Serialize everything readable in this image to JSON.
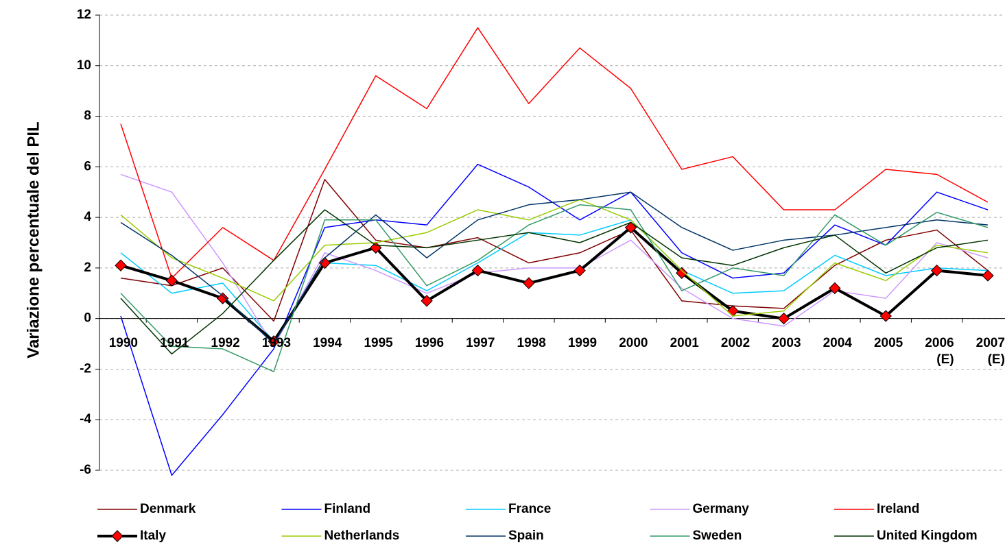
{
  "chart_data": {
    "type": "line",
    "y_label": "Variazione percentuale del PIL",
    "categories": [
      "1990",
      "1991",
      "1992",
      "1993",
      "1994",
      "1995",
      "1996",
      "1997",
      "1998",
      "1999",
      "2000",
      "2001",
      "2002",
      "2003",
      "2004",
      "2005",
      "2006\n(E)",
      "2007\n(E)"
    ],
    "ylim": [
      -6,
      12
    ],
    "yticks": [
      -6,
      -4,
      -2,
      0,
      2,
      4,
      6,
      8,
      10,
      12
    ],
    "grid": true,
    "legend": "bottom",
    "series": [
      {
        "name": "Denmark",
        "color": "#800000",
        "values": [
          1.6,
          1.3,
          2.0,
          -0.1,
          5.5,
          3.1,
          2.8,
          3.2,
          2.2,
          2.6,
          3.5,
          0.7,
          0.5,
          0.4,
          2.1,
          3.1,
          3.5,
          1.9
        ]
      },
      {
        "name": "Finland",
        "color": "#0000ff",
        "values": [
          0.1,
          -6.2,
          -3.8,
          -1.2,
          3.6,
          3.9,
          3.7,
          6.1,
          5.2,
          3.9,
          5.0,
          2.6,
          1.6,
          1.8,
          3.7,
          2.9,
          5.0,
          4.3
        ]
      },
      {
        "name": "France",
        "color": "#00ccff",
        "values": [
          2.6,
          1.0,
          1.4,
          -0.9,
          2.2,
          2.1,
          1.1,
          2.2,
          3.4,
          3.3,
          3.9,
          1.9,
          1.0,
          1.1,
          2.5,
          1.7,
          2.0,
          1.9
        ]
      },
      {
        "name": "Germany",
        "color": "#cc99ff",
        "values": [
          5.7,
          5.0,
          2.2,
          -1.1,
          2.6,
          1.9,
          1.0,
          1.8,
          2.0,
          2.0,
          3.1,
          1.2,
          0.0,
          -0.3,
          1.1,
          0.8,
          3.0,
          2.4
        ]
      },
      {
        "name": "Ireland",
        "color": "#ff0000",
        "values": [
          7.7,
          1.6,
          3.6,
          2.3,
          5.9,
          9.6,
          8.3,
          11.5,
          8.5,
          10.7,
          9.1,
          5.9,
          6.4,
          4.3,
          4.3,
          5.9,
          5.7,
          4.6
        ]
      },
      {
        "name": "Italy",
        "color": "#000000",
        "marker_color": "#ff0000",
        "marker": "diamond",
        "values": [
          2.1,
          1.5,
          0.8,
          -0.9,
          2.2,
          2.8,
          0.7,
          1.9,
          1.4,
          1.9,
          3.6,
          1.8,
          0.3,
          0.0,
          1.2,
          0.1,
          1.9,
          1.7
        ]
      },
      {
        "name": "Netherlands",
        "color": "#99cc00",
        "values": [
          4.1,
          2.4,
          1.6,
          0.7,
          2.9,
          3.0,
          3.4,
          4.3,
          3.9,
          4.7,
          3.9,
          1.9,
          0.1,
          0.3,
          2.2,
          1.5,
          2.9,
          2.6
        ]
      },
      {
        "name": "Spain",
        "color": "#003366",
        "values": [
          3.8,
          2.5,
          0.9,
          -1.0,
          2.4,
          4.1,
          2.4,
          3.9,
          4.5,
          4.7,
          5.0,
          3.6,
          2.7,
          3.1,
          3.3,
          3.6,
          3.9,
          3.7
        ]
      },
      {
        "name": "Sweden",
        "color": "#339966",
        "values": [
          1.0,
          -1.1,
          -1.2,
          -2.1,
          3.9,
          3.9,
          1.3,
          2.3,
          3.7,
          4.5,
          4.3,
          1.1,
          2.0,
          1.7,
          4.1,
          2.9,
          4.2,
          3.6
        ]
      },
      {
        "name": "United Kingdom",
        "color": "#003300",
        "values": [
          0.8,
          -1.4,
          0.2,
          2.3,
          4.3,
          2.9,
          2.8,
          3.1,
          3.4,
          3.0,
          3.8,
          2.4,
          2.1,
          2.8,
          3.3,
          1.8,
          2.8,
          3.1
        ]
      }
    ]
  }
}
